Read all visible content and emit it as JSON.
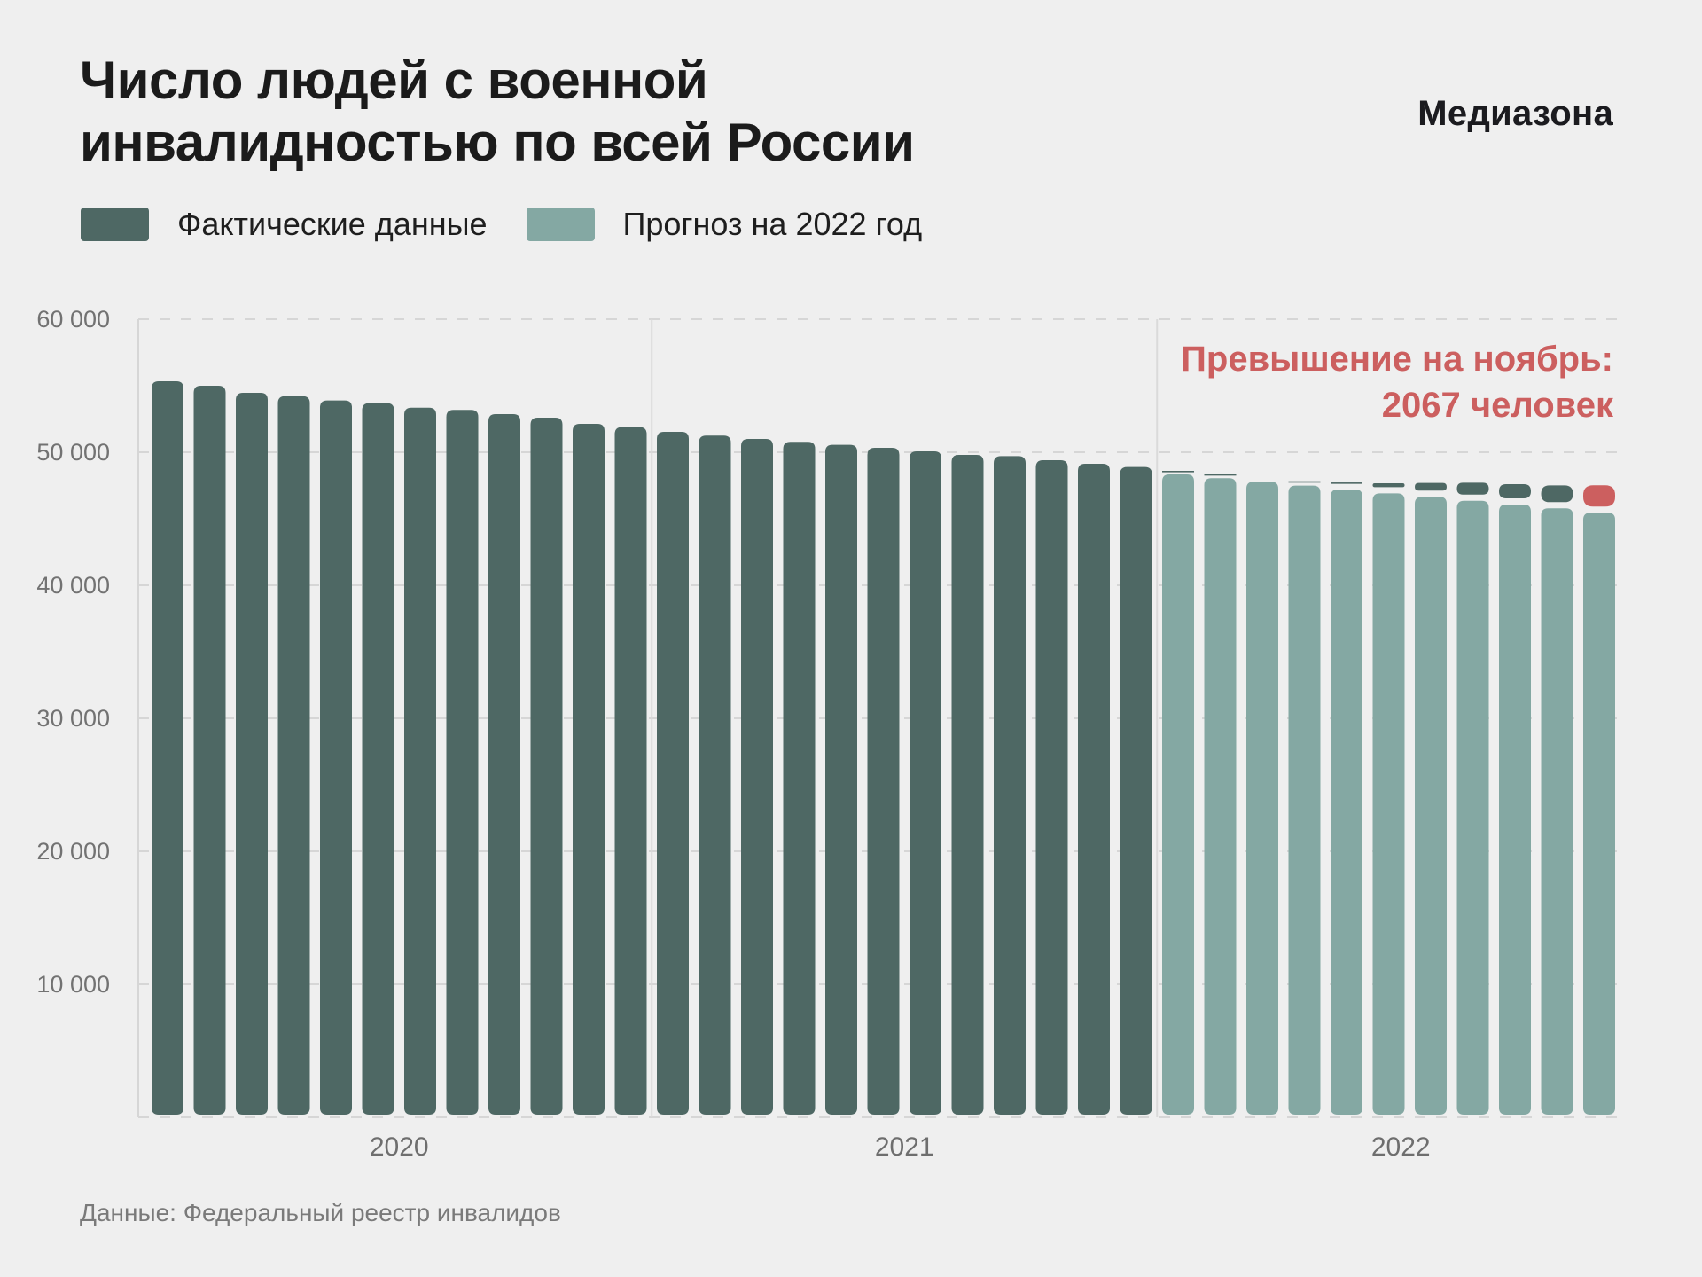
{
  "header": {
    "title_line1": "Число людей с военной",
    "title_line2": "инвалидностью по всей России",
    "logo": "Медиазона"
  },
  "legend": [
    {
      "label": "Фактические данные",
      "color": "#4e6864"
    },
    {
      "label": "Прогноз на 2022 год",
      "color": "#84a8a3"
    }
  ],
  "annotation": {
    "line1": "Превышение на ноябрь:",
    "line2": "2067 человек",
    "color": "#cc5f5f"
  },
  "source": "Данные: Федеральный реестр инвалидов",
  "chart_data": {
    "type": "bar",
    "title": "Число людей с военной инвалидностью по всей России",
    "xlabel": "",
    "ylabel": "",
    "ylim": [
      0,
      60000
    ],
    "yticks": [
      10000,
      20000,
      30000,
      40000,
      50000,
      60000
    ],
    "ytick_labels": [
      "10 000",
      "20 000",
      "30 000",
      "40 000",
      "50 000",
      "60 000"
    ],
    "grid": true,
    "legend_position": "top-left",
    "years": [
      {
        "label": "2020",
        "months": 12
      },
      {
        "label": "2021",
        "months": 12
      },
      {
        "label": "2022",
        "months": 11
      }
    ],
    "categories": [
      "2020-01",
      "2020-02",
      "2020-03",
      "2020-04",
      "2020-05",
      "2020-06",
      "2020-07",
      "2020-08",
      "2020-09",
      "2020-10",
      "2020-11",
      "2020-12",
      "2021-01",
      "2021-02",
      "2021-03",
      "2021-04",
      "2021-05",
      "2021-06",
      "2021-07",
      "2021-08",
      "2021-09",
      "2021-10",
      "2021-11",
      "2021-12",
      "2022-01",
      "2022-02",
      "2022-03",
      "2022-04",
      "2022-05",
      "2022-06",
      "2022-07",
      "2022-08",
      "2022-09",
      "2022-10",
      "2022-11"
    ],
    "series": [
      {
        "name": "Фактические данные",
        "color": "#4e6864",
        "values": [
          55330,
          55000,
          54470,
          54220,
          53890,
          53690,
          53350,
          53180,
          52870,
          52600,
          52130,
          51890,
          51530,
          51250,
          51000,
          50780,
          50560,
          50330,
          50070,
          49800,
          49710,
          49400,
          49130,
          48890,
          48600,
          48350,
          47760,
          47820,
          47730,
          47670,
          47690,
          47710,
          47600,
          47510,
          47514
        ]
      },
      {
        "name": "Прогноз на 2022 год",
        "color": "#84a8a3",
        "start_index": 24,
        "values": [
          48330,
          48050,
          47780,
          47490,
          47200,
          46910,
          46650,
          46350,
          46070,
          45780,
          45447
        ]
      }
    ],
    "highlight": {
      "index": 34,
      "color": "#cc5f5f",
      "excess": 2067
    }
  }
}
